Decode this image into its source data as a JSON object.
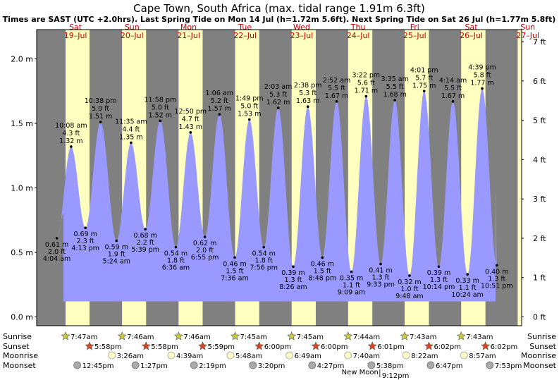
{
  "page": {
    "title": "Cape Town, South Africa (max. tidal range 1.91m 6.3ft)",
    "subtitle": "Times are SAST (UTC +2.0hrs). Last Spring Tide on Mon 14 Jul (h=1.72m 5.6ft). Next Spring Tide on Sat 26 Jul (h=1.77m 5.8ft)"
  },
  "colors": {
    "night": "#808080",
    "day": "#ffffc0",
    "water": "#9999ff",
    "day_label": "#c00000",
    "sun_star": "#cccc33",
    "sunset_star": "#dd4422",
    "moonrise": "#ffffcc",
    "moonset": "#aaaaaa"
  },
  "chart_data": {
    "type": "area",
    "title": "Cape Town, South Africa (max. tidal range 1.91m 6.3ft)",
    "y_left_unit": "m",
    "y_right_unit": "ft",
    "ylim": [
      -0.05,
      2.22
    ],
    "y_ticks_m": [
      "0.0 m",
      "0.5 m",
      "1.0 m",
      "1.5 m",
      "2.0 m"
    ],
    "y_ticks_ft": [
      "0 ft",
      "1 ft",
      "2 ft",
      "3 ft",
      "4 ft",
      "5 ft",
      "6 ft",
      "7 ft"
    ],
    "days": [
      {
        "dow": "Sat",
        "date": "19–Jul"
      },
      {
        "dow": "Sun",
        "date": "20–Jul"
      },
      {
        "dow": "Mon",
        "date": "21–Jul"
      },
      {
        "dow": "Tue",
        "date": "22–Jul"
      },
      {
        "dow": "Wed",
        "date": "23–Jul"
      },
      {
        "dow": "Thu",
        "date": "24–Jul"
      },
      {
        "dow": "Fri",
        "date": "25–Jul"
      },
      {
        "dow": "Sat",
        "date": "26–Jul"
      },
      {
        "dow": "Sun",
        "date": "27–Jul"
      }
    ],
    "tides": [
      {
        "type": "low",
        "day": 0,
        "time": "4:04 am",
        "hour": 4.07,
        "m": "0.61 m",
        "ft": "2.0 ft",
        "h": 0.61
      },
      {
        "type": "high",
        "day": 0,
        "time": "10:08 am",
        "hour": 10.13,
        "m": "1.32 m",
        "ft": "4.3 ft",
        "h": 1.32
      },
      {
        "type": "low",
        "day": 0,
        "time": "4:13 pm",
        "hour": 16.22,
        "m": "0.69 m",
        "ft": "2.3 ft",
        "h": 0.69
      },
      {
        "type": "high",
        "day": 0,
        "time": "10:38 pm",
        "hour": 22.63,
        "m": "1.51 m",
        "ft": "5.0 ft",
        "h": 1.51
      },
      {
        "type": "low",
        "day": 1,
        "time": "5:24 am",
        "hour": 5.4,
        "m": "0.59 m",
        "ft": "1.9 ft",
        "h": 0.59
      },
      {
        "type": "high",
        "day": 1,
        "time": "11:35 am",
        "hour": 11.58,
        "m": "1.35 m",
        "ft": "4.4 ft",
        "h": 1.35
      },
      {
        "type": "low",
        "day": 1,
        "time": "5:39 pm",
        "hour": 17.65,
        "m": "0.68 m",
        "ft": "2.2 ft",
        "h": 0.68
      },
      {
        "type": "high",
        "day": 1,
        "time": "11:58 pm",
        "hour": 23.97,
        "m": "1.52 m",
        "ft": "5.0 ft",
        "h": 1.52
      },
      {
        "type": "low",
        "day": 2,
        "time": "6:36 am",
        "hour": 6.6,
        "m": "0.54 m",
        "ft": "1.8 ft",
        "h": 0.54
      },
      {
        "type": "high",
        "day": 2,
        "time": "12:50 pm",
        "hour": 12.83,
        "m": "1.43 m",
        "ft": "4.7 ft",
        "h": 1.43
      },
      {
        "type": "low",
        "day": 2,
        "time": "6:55 pm",
        "hour": 18.92,
        "m": "0.62 m",
        "ft": "2.0 ft",
        "h": 0.62
      },
      {
        "type": "high",
        "day": 3,
        "time": "1:06 am",
        "hour": 1.1,
        "m": "1.57 m",
        "ft": "5.2 ft",
        "h": 1.57
      },
      {
        "type": "low",
        "day": 3,
        "time": "7:36 am",
        "hour": 7.6,
        "m": "0.46 m",
        "ft": "1.5 ft",
        "h": 0.46
      },
      {
        "type": "high",
        "day": 3,
        "time": "1:49 pm",
        "hour": 13.82,
        "m": "1.53 m",
        "ft": "5.0 ft",
        "h": 1.53
      },
      {
        "type": "low",
        "day": 3,
        "time": "7:56 pm",
        "hour": 19.93,
        "m": "0.54 m",
        "ft": "1.8 ft",
        "h": 0.54
      },
      {
        "type": "high",
        "day": 4,
        "time": "2:03 am",
        "hour": 2.05,
        "m": "1.62 m",
        "ft": "5.3 ft",
        "h": 1.62
      },
      {
        "type": "low",
        "day": 4,
        "time": "8:26 am",
        "hour": 8.43,
        "m": "0.39 m",
        "ft": "1.3 ft",
        "h": 0.39
      },
      {
        "type": "high",
        "day": 4,
        "time": "2:38 pm",
        "hour": 14.63,
        "m": "1.63 m",
        "ft": "5.3 ft",
        "h": 1.63
      },
      {
        "type": "low",
        "day": 4,
        "time": "8:48 pm",
        "hour": 20.8,
        "m": "0.46 m",
        "ft": "1.5 ft",
        "h": 0.46
      },
      {
        "type": "high",
        "day": 5,
        "time": "2:52 am",
        "hour": 2.87,
        "m": "1.67 m",
        "ft": "5.5 ft",
        "h": 1.67
      },
      {
        "type": "low",
        "day": 5,
        "time": "9:09 am",
        "hour": 9.15,
        "m": "0.35 m",
        "ft": "1.1 ft",
        "h": 0.35
      },
      {
        "type": "high",
        "day": 5,
        "time": "3:22 pm",
        "hour": 15.37,
        "m": "1.71 m",
        "ft": "5.6 ft",
        "h": 1.71
      },
      {
        "type": "low",
        "day": 5,
        "time": "9:33 pm",
        "hour": 21.55,
        "m": "0.41 m",
        "ft": "1.3 ft",
        "h": 0.41
      },
      {
        "type": "high",
        "day": 6,
        "time": "3:35 am",
        "hour": 3.58,
        "m": "1.68 m",
        "ft": "5.5 ft",
        "h": 1.68
      },
      {
        "type": "low",
        "day": 6,
        "time": "9:48 am",
        "hour": 9.8,
        "m": "0.32 m",
        "ft": "1.0 ft",
        "h": 0.32
      },
      {
        "type": "high",
        "day": 6,
        "time": "4:01 pm",
        "hour": 16.02,
        "m": "1.75 m",
        "ft": "5.7 ft",
        "h": 1.75
      },
      {
        "type": "low",
        "day": 6,
        "time": "10:14 pm",
        "hour": 22.23,
        "m": "0.39 m",
        "ft": "1.3 ft",
        "h": 0.39
      },
      {
        "type": "high",
        "day": 7,
        "time": "4:14 am",
        "hour": 4.23,
        "m": "1.67 m",
        "ft": "5.5 ft",
        "h": 1.67
      },
      {
        "type": "low",
        "day": 7,
        "time": "10:24 am",
        "hour": 10.4,
        "m": "0.33 m",
        "ft": "1.1 ft",
        "h": 0.33
      },
      {
        "type": "high",
        "day": 7,
        "time": "4:39 pm",
        "hour": 16.65,
        "m": "1.77 m",
        "ft": "5.8 ft",
        "h": 1.77
      },
      {
        "type": "low",
        "day": 7,
        "time": "10:51 pm",
        "hour": 22.85,
        "m": "0.40 m",
        "ft": "1.3 ft",
        "h": 0.4
      }
    ],
    "sun": [
      {
        "sunrise": "7:47am",
        "sunrise_h": 7.78,
        "sunset": "5:58pm",
        "sunset_h": 17.97
      },
      {
        "sunrise": "7:46am",
        "sunrise_h": 7.77,
        "sunset": "5:58pm",
        "sunset_h": 17.97
      },
      {
        "sunrise": "7:46am",
        "sunrise_h": 7.77,
        "sunset": "5:59pm",
        "sunset_h": 17.98
      },
      {
        "sunrise": "7:45am",
        "sunrise_h": 7.75,
        "sunset": "6:00pm",
        "sunset_h": 18.0
      },
      {
        "sunrise": "7:45am",
        "sunrise_h": 7.75,
        "sunset": "6:00pm",
        "sunset_h": 18.0
      },
      {
        "sunrise": "7:44am",
        "sunrise_h": 7.73,
        "sunset": "6:01pm",
        "sunset_h": 18.02
      },
      {
        "sunrise": "7:43am",
        "sunrise_h": 7.72,
        "sunset": "6:02pm",
        "sunset_h": 18.03
      },
      {
        "sunrise": "7:43am",
        "sunrise_h": 7.72,
        "sunset": "6:02pm",
        "sunset_h": 18.03
      }
    ],
    "moonrise": [
      {
        "time": "3:26am",
        "day": 1,
        "hour": 3.43
      },
      {
        "time": "4:39am",
        "day": 2,
        "hour": 4.65
      },
      {
        "time": "5:48am",
        "day": 3,
        "hour": 5.8
      },
      {
        "time": "6:49am",
        "day": 4,
        "hour": 6.82
      },
      {
        "time": "7:40am",
        "day": 5,
        "hour": 7.67
      },
      {
        "time": "8:22am",
        "day": 6,
        "hour": 8.37
      },
      {
        "time": "8:57am",
        "day": 7,
        "hour": 8.95
      }
    ],
    "moonset": [
      {
        "time": "12:45pm",
        "day": 0,
        "hour": 12.75
      },
      {
        "time": "1:27pm",
        "day": 1,
        "hour": 13.45
      },
      {
        "time": "2:19pm",
        "day": 2,
        "hour": 14.32
      },
      {
        "time": "3:20pm",
        "day": 3,
        "hour": 15.33
      },
      {
        "time": "4:27pm",
        "day": 4,
        "hour": 16.45
      },
      {
        "time": "5:38pm",
        "day": 5,
        "hour": 17.63
      },
      {
        "time": "6:47pm",
        "day": 6,
        "hour": 18.78
      },
      {
        "time": "7:53pm",
        "day": 7,
        "hour": 19.88
      }
    ],
    "new_moon": {
      "label": "New Moon",
      "time": "9:12pm",
      "day": 5,
      "hour": 21.2
    },
    "row_labels": {
      "sunrise": "Sunrise",
      "sunset": "Sunset",
      "moonrise": "Moonrise",
      "moonset": "Moonset"
    }
  }
}
